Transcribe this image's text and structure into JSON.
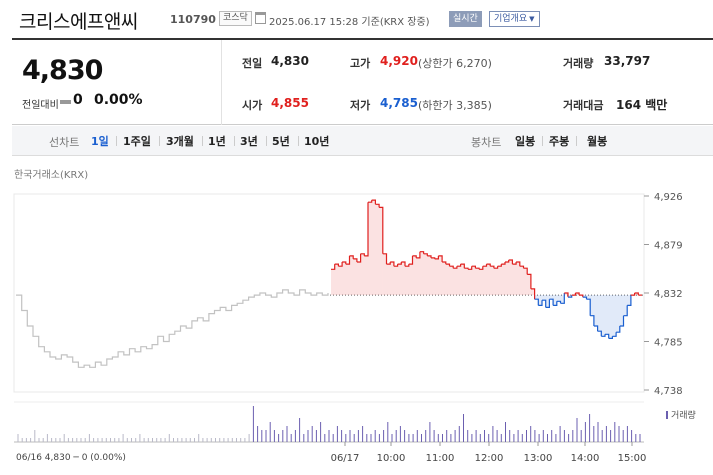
{
  "header": {
    "stock_name": "크리스에프앤씨",
    "stock_code": "110790",
    "market": "코스닥",
    "datetime": "2025.06.17 15:28 기준(KRX 장중)",
    "realtime": "실시간",
    "company_info": "기업개요"
  },
  "price": {
    "current": "4,830",
    "change_label": "전일대비",
    "change_value": "0",
    "change_rate": "0.00%"
  },
  "stats": {
    "prev_close_label": "전일",
    "prev_close": "4,830",
    "open_label": "시가",
    "open": "4,855",
    "high_label": "고가",
    "high": "4,920",
    "upper_limit": "(상한가 6,270)",
    "low_label": "저가",
    "low": "4,785",
    "lower_limit": "(하한가 3,385)",
    "volume_label": "거래량",
    "volume": "33,797",
    "amount_label": "거래대금",
    "amount": "164 백만"
  },
  "line_tabs": {
    "label": "선차트",
    "items": [
      "1일",
      "1주일",
      "3개월",
      "1년",
      "3년",
      "5년",
      "10년"
    ]
  },
  "candle_tabs": {
    "label": "봉차트",
    "items": [
      "일봉",
      "주봉",
      "월봉"
    ]
  },
  "exchange_label": "한국거래소(KRX)",
  "volume_legend": "거래량",
  "footer_prev": "06/16  4,830 ─ 0 (0.00%)",
  "colors": {
    "up": "#e0201e",
    "down": "#1a5fd0",
    "prev_day": "#c2c2c2",
    "volume": "#6b5fb0"
  },
  "chart_data": {
    "type": "line",
    "ylim": [
      4738,
      4926
    ],
    "y_ticks": [
      "4,926",
      "4,879",
      "4,832",
      "4,785",
      "4,738"
    ],
    "y_tick_values": [
      4926,
      4879,
      4832,
      4785,
      4738
    ],
    "x_ticks": [
      "06/17",
      "10:00",
      "11:00",
      "12:00",
      "13:00",
      "14:00",
      "15:00"
    ],
    "prev_close": 4830,
    "prev_day_series": [
      4830,
      4815,
      4800,
      4790,
      4780,
      4775,
      4770,
      4768,
      4772,
      4770,
      4765,
      4760,
      4762,
      4760,
      4765,
      4762,
      4768,
      4770,
      4775,
      4772,
      4778,
      4775,
      4780,
      4778,
      4782,
      4790,
      4785,
      4792,
      4795,
      4800,
      4798,
      4805,
      4808,
      4805,
      4812,
      4815,
      4818,
      4815,
      4820,
      4822,
      4825,
      4828,
      4830,
      4832,
      4830,
      4828,
      4832,
      4835,
      4832,
      4830,
      4835,
      4832,
      4830,
      4832,
      4830,
      4832
    ],
    "today_series": [
      4855,
      4860,
      4858,
      4862,
      4860,
      4868,
      4865,
      4862,
      4870,
      4868,
      4920,
      4922,
      4918,
      4915,
      4870,
      4860,
      4862,
      4858,
      4860,
      4862,
      4858,
      4860,
      4868,
      4866,
      4872,
      4870,
      4868,
      4866,
      4865,
      4868,
      4862,
      4860,
      4858,
      4856,
      4858,
      4860,
      4856,
      4855,
      4858,
      4856,
      4855,
      4858,
      4860,
      4858,
      4856,
      4858,
      4860,
      4862,
      4864,
      4860,
      4862,
      4858,
      4856,
      4850,
      4836,
      4826,
      4820,
      4825,
      4818,
      4826,
      4820,
      4824,
      4822,
      4832,
      4828,
      4830,
      4832,
      4830,
      4828,
      4826,
      4810,
      4800,
      4795,
      4790,
      4792,
      4788,
      4790,
      4794,
      4800,
      4810,
      4820,
      4830,
      4832,
      4830,
      4830
    ],
    "volume_series": [
      2,
      1,
      1,
      1,
      3,
      1,
      1,
      2,
      1,
      1,
      1,
      2,
      1,
      1,
      1,
      1,
      1,
      2,
      1,
      1,
      1,
      1,
      1,
      1,
      1,
      2,
      1,
      1,
      1,
      2,
      1,
      1,
      1,
      1,
      1,
      1,
      2,
      1,
      1,
      1,
      1,
      1,
      1,
      2,
      1,
      1,
      1,
      1,
      1,
      1,
      1,
      1,
      1,
      1,
      1,
      2,
      9,
      4,
      3,
      3,
      5,
      3,
      2,
      3,
      4,
      2,
      3,
      6,
      2,
      3,
      4,
      3,
      5,
      2,
      3,
      2,
      4,
      3,
      2,
      3,
      2,
      3,
      4,
      2,
      2,
      3,
      2,
      3,
      5,
      2,
      3,
      4,
      3,
      2,
      2,
      3,
      2,
      3,
      5,
      3,
      2,
      2,
      3,
      2,
      3,
      4,
      7,
      3,
      2,
      3,
      2,
      3,
      2,
      4,
      3,
      2,
      5,
      3,
      2,
      3,
      2,
      3,
      4,
      3,
      2,
      3,
      2,
      3,
      2,
      4,
      3,
      2,
      3,
      6,
      3,
      5,
      7,
      4,
      5,
      3,
      4,
      3,
      5,
      4,
      3,
      4,
      3,
      2,
      2
    ]
  }
}
